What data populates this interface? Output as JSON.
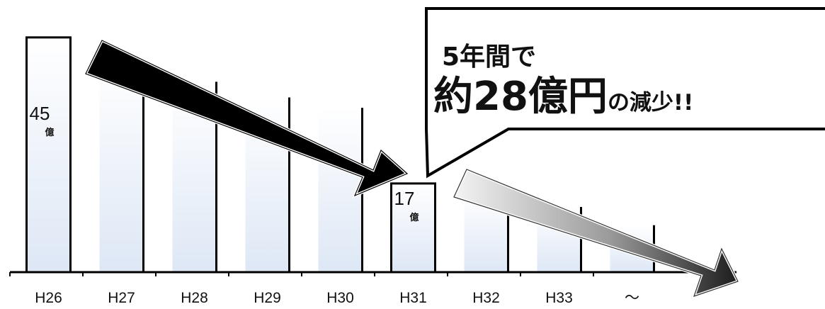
{
  "chart_data": {
    "type": "bar",
    "categories": [
      "H26",
      "H27",
      "H28",
      "H29",
      "H30",
      "H31",
      "H32",
      "H33",
      "～"
    ],
    "values": [
      45,
      40.5,
      36.5,
      33.5,
      31.5,
      17,
      15,
      12.5,
      9
    ],
    "highlighted_labels": {
      "H26": {
        "number": "45",
        "unit": "億"
      },
      "H31": {
        "number": "17",
        "unit": "億"
      }
    },
    "ylim": [
      0,
      50
    ],
    "grid": false,
    "colors": {
      "bar_fill_top": "#ffffff",
      "bar_fill_bottom": "#dde7f5",
      "line": "#000000",
      "arrow_dark": "#000000",
      "arrow_light": "#d8d8d8"
    }
  },
  "callout": {
    "line1": "5年間で",
    "line2_big": "約28億円",
    "line2_small": "の減少!!"
  }
}
